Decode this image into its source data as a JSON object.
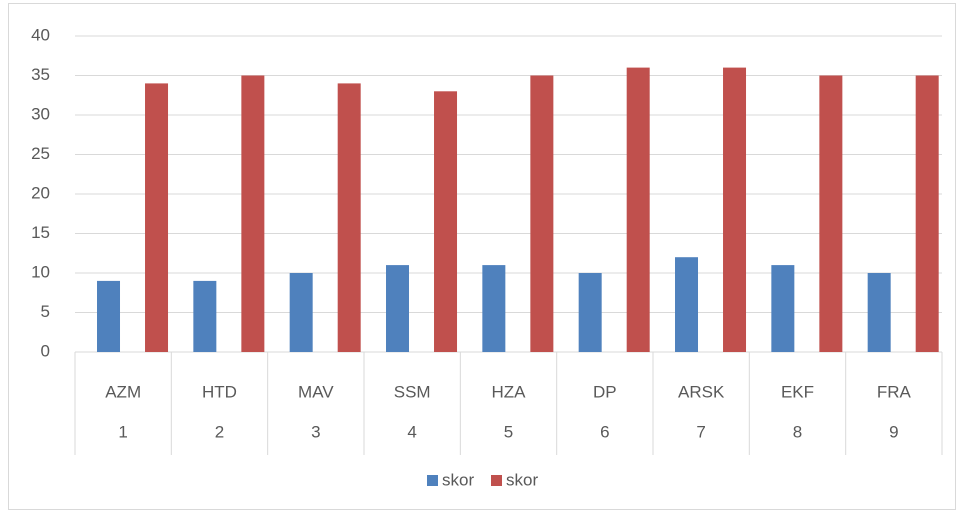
{
  "chart_data": {
    "type": "bar",
    "categories": [
      "AZM",
      "HTD",
      "MAV",
      "SSM",
      "HZA",
      "DP",
      "ARSK",
      "EKF",
      "FRA"
    ],
    "category_groups": [
      1,
      2,
      3,
      4,
      5,
      6,
      7,
      8,
      9
    ],
    "series": [
      {
        "name": "skor",
        "color": "#4f81bd",
        "values": [
          9,
          9,
          10,
          11,
          11,
          10,
          12,
          11,
          10
        ]
      },
      {
        "name": "skor",
        "color": "#c0504d",
        "values": [
          34,
          35,
          34,
          33,
          35,
          36,
          36,
          35,
          35
        ]
      }
    ],
    "ylim": [
      0,
      40
    ],
    "yticks": [
      0,
      5,
      10,
      15,
      20,
      25,
      30,
      35,
      40
    ],
    "grid": true,
    "legend": "bottom"
  }
}
